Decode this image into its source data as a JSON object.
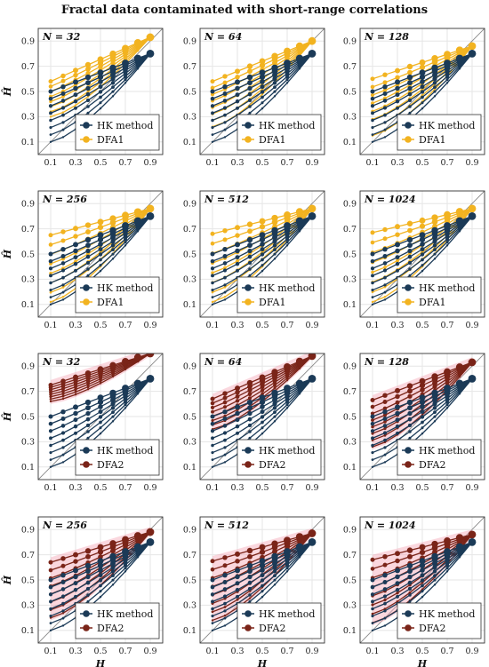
{
  "title": "Fractal data contaminated with short-range correlations",
  "colors": {
    "hk": "#1b3a57",
    "dfa1": "#f2b320",
    "dfa2": "#7a2418",
    "dfa2_band": "#f4a6b6",
    "grid": "#e6e6e6",
    "diag": "#888888"
  },
  "axes": {
    "xlabel": "H",
    "ylabel": "Ĥ",
    "x_ticks": [
      "0.1",
      "0.3",
      "0.5",
      "0.7",
      "0.9"
    ],
    "y_ticks": [
      "0.1",
      "0.3",
      "0.5",
      "0.7",
      "0.9"
    ],
    "xlim": [
      0.0,
      1.0
    ],
    "ylim": [
      0.0,
      1.0
    ]
  },
  "chart_data": [
    {
      "type": "line",
      "n_label": "N = 32",
      "legend": [
        "HK method",
        "DFA1"
      ],
      "hk": {
        "low": 0.1,
        "high": 0.5
      },
      "dfa": {
        "low": 0.3,
        "high": 0.58,
        "end": 0.93
      }
    },
    {
      "type": "line",
      "n_label": "N = 64",
      "legend": [
        "HK method",
        "DFA1"
      ],
      "hk": {
        "low": 0.1,
        "high": 0.5
      },
      "dfa": {
        "low": 0.22,
        "high": 0.58,
        "end": 0.9
      }
    },
    {
      "type": "line",
      "n_label": "N = 128",
      "legend": [
        "HK method",
        "DFA1"
      ],
      "hk": {
        "low": 0.1,
        "high": 0.5
      },
      "dfa": {
        "low": 0.15,
        "high": 0.6,
        "end": 0.86
      }
    },
    {
      "type": "line",
      "n_label": "N = 256",
      "legend": [
        "HK method",
        "DFA1"
      ],
      "hk": {
        "low": 0.1,
        "high": 0.5
      },
      "dfa": {
        "low": 0.12,
        "high": 0.65,
        "end": 0.86
      }
    },
    {
      "type": "line",
      "n_label": "N = 512",
      "legend": [
        "HK method",
        "DFA1"
      ],
      "hk": {
        "low": 0.1,
        "high": 0.5
      },
      "dfa": {
        "low": 0.12,
        "high": 0.66,
        "end": 0.86
      }
    },
    {
      "type": "line",
      "n_label": "N = 1024",
      "legend": [
        "HK method",
        "DFA1"
      ],
      "hk": {
        "low": 0.1,
        "high": 0.5
      },
      "dfa": {
        "low": 0.12,
        "high": 0.67,
        "end": 0.86
      }
    },
    {
      "type": "line",
      "n_label": "N = 32",
      "legend": [
        "HK method",
        "DFA2"
      ],
      "hk": {
        "low": 0.1,
        "high": 0.5
      },
      "dfa": {
        "low": 0.62,
        "high": 0.75,
        "end": 1.0
      }
    },
    {
      "type": "line",
      "n_label": "N = 64",
      "legend": [
        "HK method",
        "DFA2"
      ],
      "hk": {
        "low": 0.1,
        "high": 0.5
      },
      "dfa": {
        "low": 0.4,
        "high": 0.64,
        "end": 0.98
      }
    },
    {
      "type": "line",
      "n_label": "N = 128",
      "legend": [
        "HK method",
        "DFA2"
      ],
      "hk": {
        "low": 0.1,
        "high": 0.5
      },
      "dfa": {
        "low": 0.26,
        "high": 0.63,
        "end": 0.93
      }
    },
    {
      "type": "line",
      "n_label": "N = 256",
      "legend": [
        "HK method",
        "DFA2"
      ],
      "hk": {
        "low": 0.1,
        "high": 0.5
      },
      "dfa": {
        "low": 0.2,
        "high": 0.64,
        "end": 0.88
      }
    },
    {
      "type": "line",
      "n_label": "N = 512",
      "legend": [
        "HK method",
        "DFA2"
      ],
      "hk": {
        "low": 0.1,
        "high": 0.5
      },
      "dfa": {
        "low": 0.18,
        "high": 0.65,
        "end": 0.87
      }
    },
    {
      "type": "line",
      "n_label": "N = 1024",
      "legend": [
        "HK method",
        "DFA2"
      ],
      "hk": {
        "low": 0.1,
        "high": 0.5
      },
      "dfa": {
        "low": 0.16,
        "high": 0.66,
        "end": 0.86
      }
    }
  ]
}
